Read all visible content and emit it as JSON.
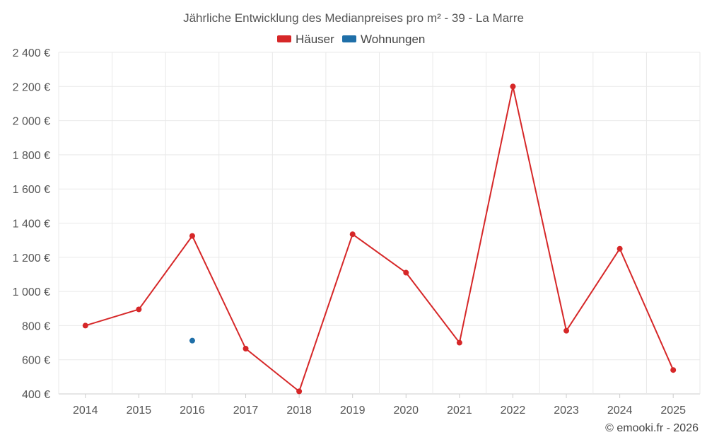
{
  "chart_data": {
    "type": "line",
    "title": "Jährliche Entwicklung des Medianpreises pro m² - 39 - La Marre",
    "categories": [
      "2014",
      "2015",
      "2016",
      "2017",
      "2018",
      "2019",
      "2020",
      "2021",
      "2022",
      "2023",
      "2024",
      "2025"
    ],
    "series": [
      {
        "name": "Häuser",
        "color": "#d62728",
        "values": [
          800,
          895,
          1325,
          665,
          415,
          1335,
          1110,
          700,
          2200,
          770,
          1250,
          540
        ]
      },
      {
        "name": "Wohnungen",
        "color": "#1f6fa8",
        "values": [
          null,
          null,
          712,
          null,
          null,
          null,
          null,
          null,
          null,
          null,
          null,
          null
        ]
      }
    ],
    "ylim": [
      400,
      2400
    ],
    "yticks": [
      400,
      600,
      800,
      1000,
      1200,
      1400,
      1600,
      1800,
      2000,
      2200,
      2400
    ],
    "ytick_labels": [
      "400 €",
      "600 €",
      "800 €",
      "1 000 €",
      "1 200 €",
      "1 400 €",
      "1 600 €",
      "1 800 €",
      "2 000 €",
      "2 200 €",
      "2 400 €"
    ],
    "grid": true,
    "legend_position": "top-center"
  },
  "credit": "© emooki.fr - 2026"
}
